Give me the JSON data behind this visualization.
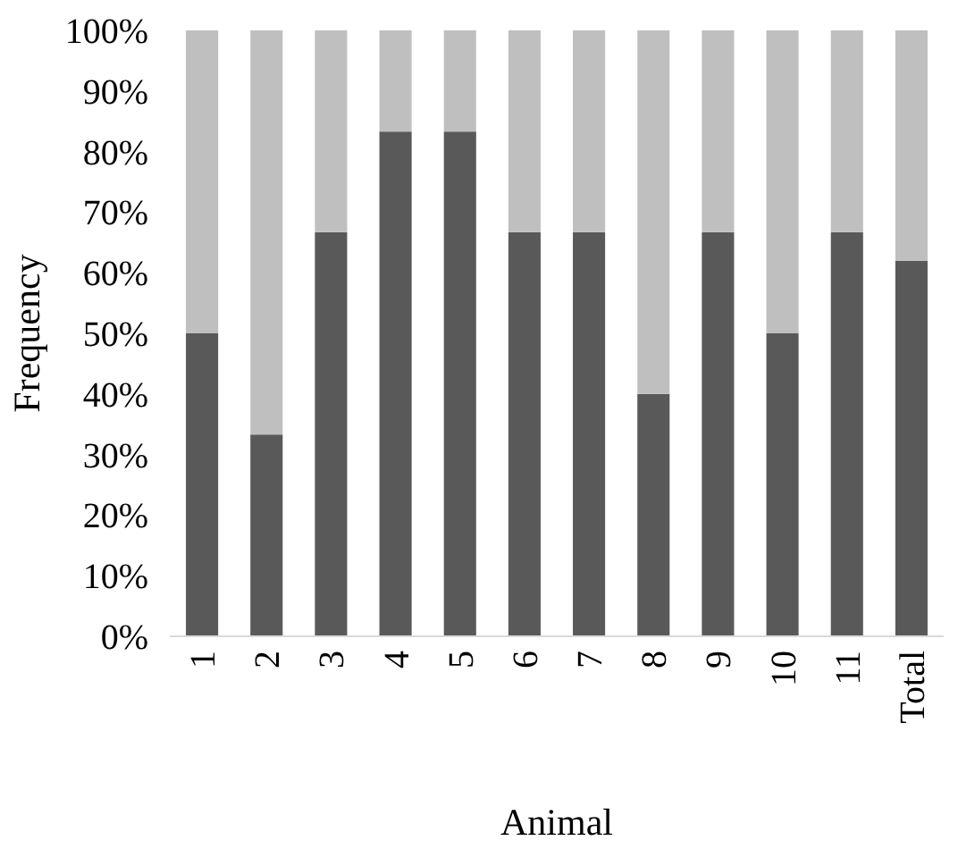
{
  "chart_data": {
    "type": "bar",
    "stacked": true,
    "xlabel": "Animal",
    "ylabel": "Frequency",
    "categories": [
      "1",
      "2",
      "3",
      "4",
      "5",
      "6",
      "7",
      "8",
      "9",
      "10",
      "11",
      "Total"
    ],
    "series": [
      {
        "color": "#595959",
        "values": [
          50,
          33.3,
          66.7,
          83.3,
          83.3,
          66.7,
          66.7,
          40,
          66.7,
          50,
          66.7,
          62
        ]
      },
      {
        "color": "#bfbfbf",
        "values": [
          50,
          66.7,
          33.3,
          16.7,
          16.7,
          33.3,
          33.3,
          60,
          33.3,
          50,
          33.3,
          38
        ]
      }
    ],
    "ylim": [
      0,
      100
    ],
    "yticks": [
      {
        "value": 0,
        "label": "0%"
      },
      {
        "value": 10,
        "label": "10%"
      },
      {
        "value": 20,
        "label": "20%"
      },
      {
        "value": 30,
        "label": "30%"
      },
      {
        "value": 40,
        "label": "40%"
      },
      {
        "value": 50,
        "label": "50%"
      },
      {
        "value": 60,
        "label": "60%"
      },
      {
        "value": 70,
        "label": "70%"
      },
      {
        "value": 80,
        "label": "80%"
      },
      {
        "value": 90,
        "label": "90%"
      },
      {
        "value": 100,
        "label": "100%"
      }
    ],
    "grid": false
  }
}
